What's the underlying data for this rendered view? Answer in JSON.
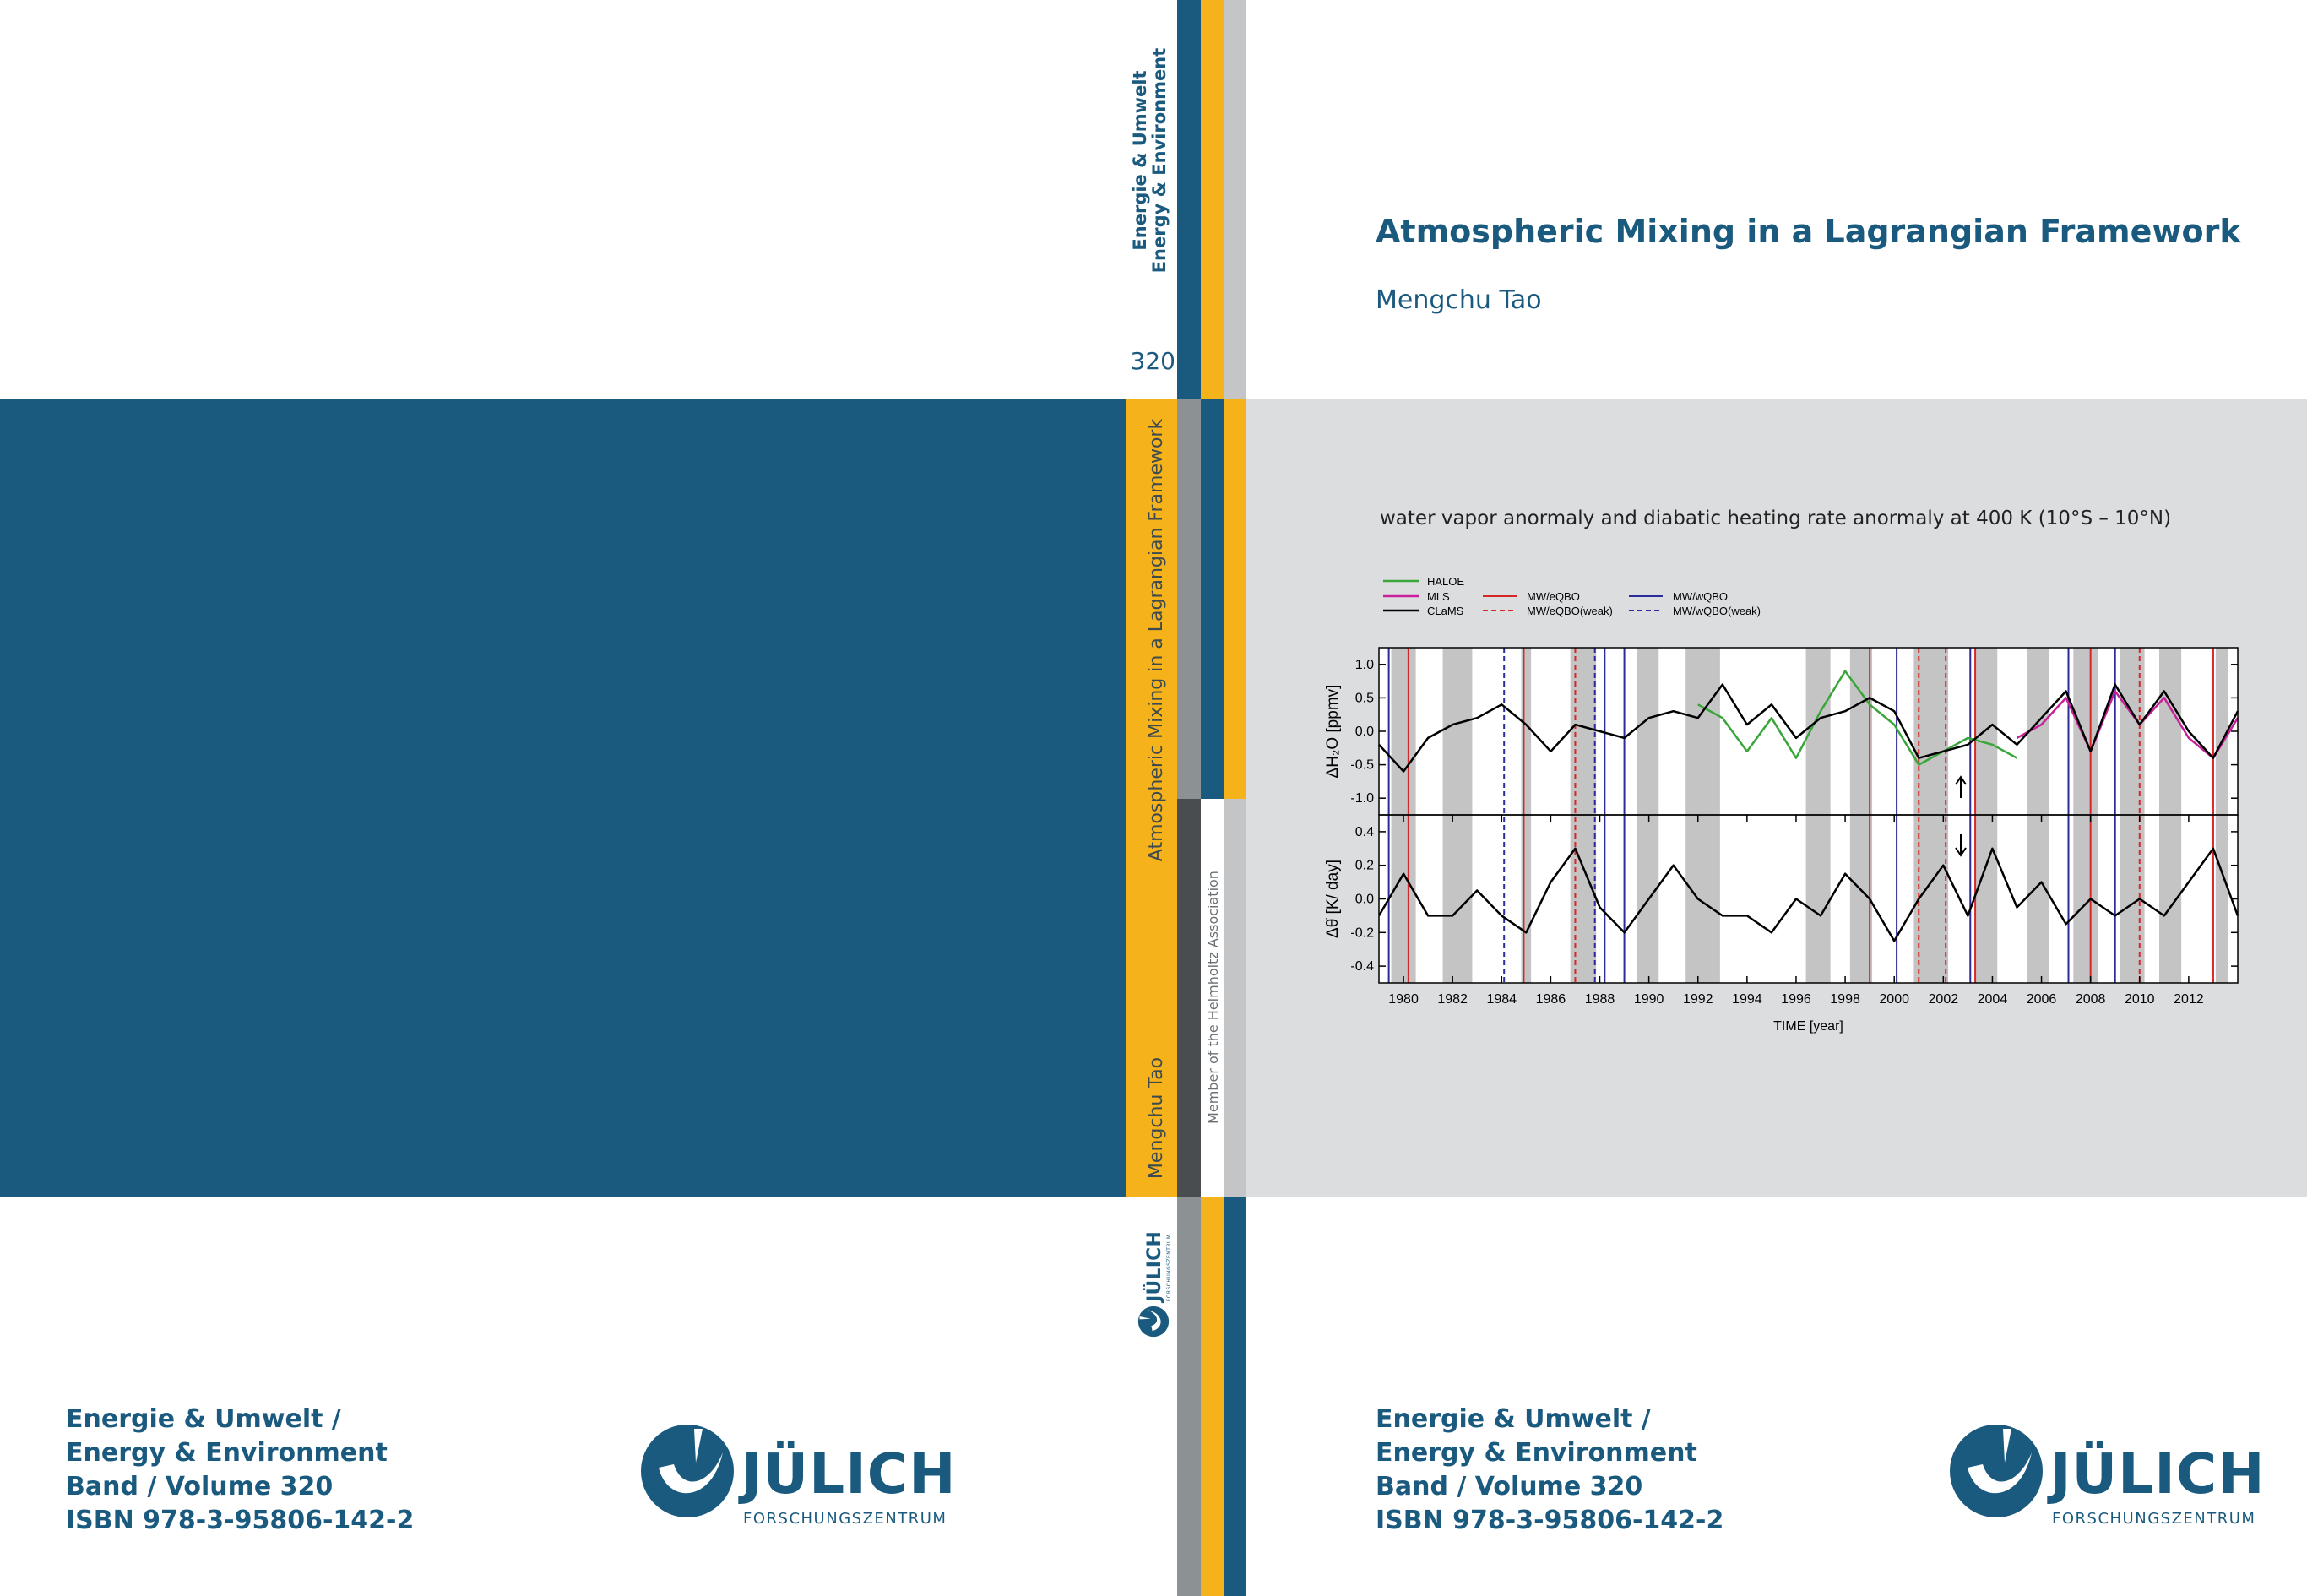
{
  "back": {
    "imprint": [
      "Energie & Umwelt /",
      "Energy & Environment",
      "Band / Volume 320",
      "ISBN 978-3-95806-142-2"
    ],
    "logo": "JÜLICH",
    "logo_sub": "FORSCHUNGSZENTRUM"
  },
  "spine": {
    "series": [
      "Energie & Umwelt",
      "Energy & Environment"
    ],
    "volume": "320",
    "title": "Atmospheric Mixing in a Lagrangian Framework",
    "author": "Mengchu Tao",
    "association": "Member of the Helmholtz Association",
    "logo": "JÜLICH",
    "logo_sub": "FORSCHUNGSZENTRUM"
  },
  "front": {
    "title": "Atmospheric Mixing in a Lagrangian Framework",
    "author": "Mengchu Tao",
    "caption": "water vapor anormaly and diabatic heating rate anormaly at 400 K (10°S – 10°N)",
    "imprint": [
      "Energie & Umwelt /",
      "Energy & Environment",
      "Band / Volume 320",
      "ISBN 978-3-95806-142-2"
    ],
    "logo": "JÜLICH",
    "logo_sub": "FORSCHUNGSZENTRUM"
  },
  "chart_data": [
    {
      "type": "line",
      "ylabel": "ΔH₂O [ppmv]",
      "xlim": [
        1979,
        2014
      ],
      "ylim": [
        -1.25,
        1.25
      ],
      "yticks": [
        {
          "value": -1,
          "label": "-1.0"
        },
        -0.5,
        {
          "value": 0,
          "label": "0.0"
        },
        0.5,
        {
          "value": 1,
          "label": "1.0"
        }
      ],
      "x": [
        1979,
        1980,
        1981,
        1982,
        1983,
        1984,
        1985,
        1986,
        1987,
        1988,
        1989,
        1990,
        1991,
        1992,
        1993,
        1994,
        1995,
        1996,
        1997,
        1998,
        1999,
        2000,
        2001,
        2002,
        2003,
        2004,
        2005,
        2006,
        2007,
        2008,
        2009,
        2010,
        2011,
        2012,
        2013,
        2014
      ],
      "series": [
        {
          "name": "HALOE",
          "color": "#3aa63a",
          "values": [
            null,
            null,
            null,
            null,
            null,
            null,
            null,
            null,
            null,
            null,
            null,
            null,
            null,
            0.4,
            0.2,
            -0.3,
            0.2,
            -0.4,
            0.3,
            0.9,
            0.4,
            0.1,
            -0.5,
            -0.3,
            -0.1,
            -0.2,
            -0.4,
            null,
            null,
            null,
            null,
            null,
            null,
            null,
            null,
            null
          ]
        },
        {
          "name": "MLS",
          "color": "#c8209a",
          "values": [
            null,
            null,
            null,
            null,
            null,
            null,
            null,
            null,
            null,
            null,
            null,
            null,
            null,
            null,
            null,
            null,
            null,
            null,
            null,
            null,
            null,
            null,
            null,
            null,
            null,
            null,
            -0.1,
            0.1,
            0.5,
            -0.3,
            0.6,
            0.1,
            0.5,
            -0.1,
            -0.4,
            0.2
          ]
        },
        {
          "name": "CLaMS",
          "color": "#000000",
          "values": [
            -0.2,
            -0.6,
            -0.1,
            0.1,
            0.2,
            0.4,
            0.1,
            -0.3,
            0.1,
            0.0,
            -0.1,
            0.2,
            0.3,
            0.2,
            0.7,
            0.1,
            0.4,
            -0.1,
            0.2,
            0.3,
            0.5,
            0.3,
            -0.4,
            -0.3,
            -0.2,
            0.1,
            -0.2,
            0.2,
            0.6,
            -0.3,
            0.7,
            0.1,
            0.6,
            0.0,
            -0.4,
            0.3
          ]
        }
      ],
      "events": [
        {
          "name": "MW/eQBO",
          "color": "#d62728",
          "dashed": false,
          "x": [
            1980.2,
            1984.9,
            1999.0,
            2003.3,
            2008.0,
            2013.0
          ]
        },
        {
          "name": "MW/eQBO(weak)",
          "color": "#d62728",
          "dashed": true,
          "x": [
            1987.0,
            2001.0,
            2002.1,
            2010.0
          ]
        },
        {
          "name": "MW/wQBO",
          "color": "#2b2b9a",
          "dashed": false,
          "x": [
            1979.4,
            1988.2,
            1989.0,
            2000.1,
            2003.1,
            2007.1,
            2009.0
          ]
        },
        {
          "name": "MW/wQBO(weak)",
          "color": "#2b2b9a",
          "dashed": true,
          "x": [
            1984.1,
            1987.8
          ]
        }
      ],
      "shading": {
        "color": "#c4c4c4",
        "spans": [
          [
            1979.5,
            1980.5
          ],
          [
            1981.6,
            1982.8
          ],
          [
            1984.8,
            1985.2
          ],
          [
            1986.8,
            1987.85
          ],
          [
            1989.5,
            1990.4
          ],
          [
            1991.5,
            1992.9
          ],
          [
            1996.4,
            1997.4
          ],
          [
            1998.2,
            1999.1
          ],
          [
            2000.8,
            2002.2
          ],
          [
            2003.3,
            2004.2
          ],
          [
            2005.4,
            2006.3
          ],
          [
            2007.3,
            2008.3
          ],
          [
            2009.2,
            2010.2
          ],
          [
            2010.8,
            2011.7
          ],
          [
            2013.1,
            2013.6
          ]
        ]
      }
    },
    {
      "type": "line",
      "ylabel": "Δθ̇  [K/ day]",
      "xlabel": "TIME [year]",
      "xlim": [
        1979,
        2014
      ],
      "xticks": [
        1980,
        1982,
        1984,
        1986,
        1988,
        1990,
        1992,
        1994,
        1996,
        1998,
        2000,
        2002,
        2004,
        2006,
        2008,
        2010,
        2012
      ],
      "ylim": [
        -0.5,
        0.5
      ],
      "yticks": [
        -0.4,
        -0.2,
        {
          "value": 0,
          "label": "0.0"
        },
        0.2,
        0.4
      ],
      "x": [
        1979,
        1980,
        1981,
        1982,
        1983,
        1984,
        1985,
        1986,
        1987,
        1988,
        1989,
        1990,
        1991,
        1992,
        1993,
        1994,
        1995,
        1996,
        1997,
        1998,
        1999,
        2000,
        2001,
        2002,
        2003,
        2004,
        2005,
        2006,
        2007,
        2008,
        2009,
        2010,
        2011,
        2012,
        2013,
        2014
      ],
      "series": [
        {
          "color": "#000000",
          "values": [
            -0.1,
            0.15,
            -0.1,
            -0.1,
            0.05,
            -0.1,
            -0.2,
            0.1,
            0.3,
            -0.05,
            -0.2,
            0.0,
            0.2,
            0.0,
            -0.1,
            -0.1,
            -0.2,
            0.0,
            -0.1,
            0.15,
            0.0,
            -0.25,
            0.0,
            0.2,
            -0.1,
            0.3,
            -0.05,
            0.1,
            -0.15,
            0.0,
            -0.1,
            0.0,
            -0.1,
            0.1,
            0.3,
            -0.1
          ]
        }
      ]
    }
  ]
}
